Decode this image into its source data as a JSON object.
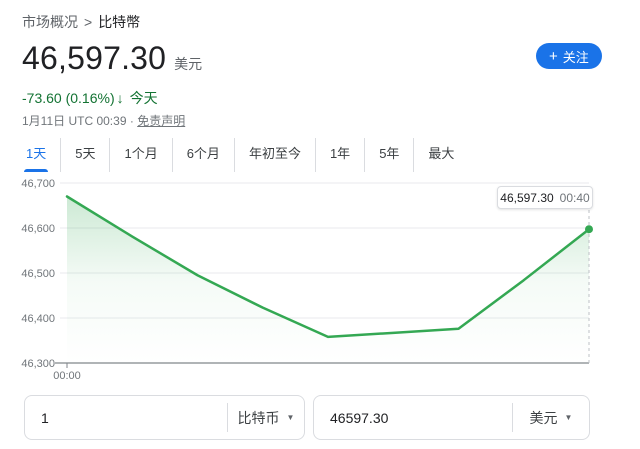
{
  "breadcrumb": {
    "parent": "市场概况",
    "separator": ">",
    "current": "比特幣"
  },
  "quote": {
    "price": "46,597.30",
    "currency_label": "美元",
    "change_text": "-73.60 (0.16%)",
    "down_arrow": "↓",
    "change_period": "今天",
    "datetime": "1月11日 UTC 00:39",
    "meta_separator": "·",
    "disclaimer": "免责声明"
  },
  "follow_button": {
    "plus": "+",
    "label": "关注"
  },
  "tabs": [
    {
      "label": "1天",
      "active": true
    },
    {
      "label": "5天",
      "active": false
    },
    {
      "label": "1个月",
      "active": false
    },
    {
      "label": "6个月",
      "active": false
    },
    {
      "label": "年初至今",
      "active": false
    },
    {
      "label": "1年",
      "active": false
    },
    {
      "label": "5年",
      "active": false
    },
    {
      "label": "最大",
      "active": false
    }
  ],
  "chart_data": {
    "type": "area",
    "x": [
      "00:00",
      "00:05",
      "00:10",
      "00:15",
      "00:20",
      "00:25",
      "00:30",
      "00:35",
      "00:40"
    ],
    "values": [
      46670,
      46581,
      46495,
      46423,
      46358,
      46367,
      46376,
      46484,
      46597.3
    ],
    "ylim": [
      46300,
      46700
    ],
    "yticks": [
      46300,
      46400,
      46500,
      46600,
      46700
    ],
    "ytick_labels": [
      "46,300",
      "46,400",
      "46,500",
      "46,600",
      "46,700"
    ],
    "xtick_labels": [
      "00:00"
    ],
    "grid": true,
    "legend": "none",
    "line_color": "#34a853",
    "fill_color": "#34a853",
    "tooltip": {
      "price": "46,597.30",
      "time": "00:40"
    }
  },
  "converter": {
    "from": {
      "value": "1",
      "unit": "比特币"
    },
    "to": {
      "value": "46597.30",
      "unit": "美元"
    }
  },
  "colors": {
    "accent_blue": "#1a73e8",
    "change_green": "#137333",
    "line_green": "#34a853",
    "text_primary": "#202124",
    "text_secondary": "#70757a",
    "border": "#dadce0",
    "gridline": "#e8eaed",
    "axis": "#80868b"
  }
}
